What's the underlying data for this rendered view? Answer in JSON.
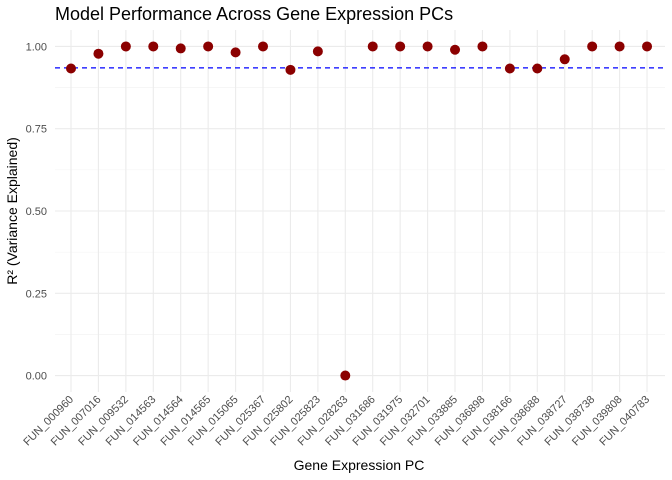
{
  "chart_data": {
    "type": "scatter",
    "title": "Model Performance Across Gene Expression PCs",
    "xlabel": "Gene Expression PC",
    "ylabel": "R² (Variance Explained)",
    "ylim": [
      -0.05,
      1.05
    ],
    "yticks": [
      0.0,
      0.25,
      0.5,
      0.75,
      1.0
    ],
    "ytick_labels": [
      "0.00",
      "0.25",
      "0.50",
      "0.75",
      "1.00"
    ],
    "categories": [
      "FUN_000960",
      "FUN_007016",
      "FUN_009532",
      "FUN_014563",
      "FUN_014564",
      "FUN_014565",
      "FUN_015065",
      "FUN_025367",
      "FUN_025802",
      "FUN_025823",
      "FUN_028263",
      "FUN_031686",
      "FUN_031975",
      "FUN_032701",
      "FUN_033885",
      "FUN_036898",
      "FUN_038166",
      "FUN_038688",
      "FUN_038727",
      "FUN_038738",
      "FUN_039808",
      "FUN_040783"
    ],
    "values": [
      0.933,
      0.978,
      1.0,
      1.0,
      0.994,
      1.0,
      0.982,
      1.0,
      0.929,
      0.985,
      0.0,
      1.0,
      1.0,
      1.0,
      0.99,
      1.0,
      0.933,
      0.933,
      0.961,
      1.0,
      1.0,
      1.0
    ],
    "reference_line": {
      "value": 0.935,
      "style": "dashed",
      "color": "#0000ff"
    },
    "point_color": "#8b0000",
    "grid": true
  }
}
